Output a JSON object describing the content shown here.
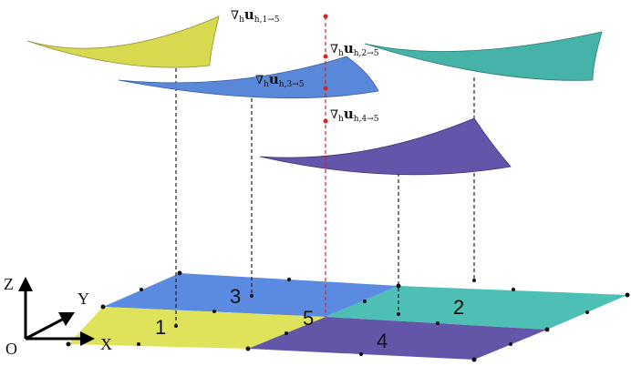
{
  "gradients": [
    {
      "operator": "∇",
      "operator_sub": "h",
      "symbol": "u",
      "symbol_sub": "h,1→5"
    },
    {
      "operator": "∇",
      "operator_sub": "h",
      "symbol": "u",
      "symbol_sub": "h,2→5"
    },
    {
      "operator": "∇",
      "operator_sub": "h",
      "symbol": "u",
      "symbol_sub": "h,3→5"
    },
    {
      "operator": "∇",
      "operator_sub": "h",
      "symbol": "u",
      "symbol_sub": "h,4→5"
    }
  ],
  "regions": [
    "1",
    "2",
    "3",
    "4",
    "5"
  ],
  "axes": {
    "z": "Z",
    "y": "Y",
    "x": "X",
    "origin": "O"
  }
}
